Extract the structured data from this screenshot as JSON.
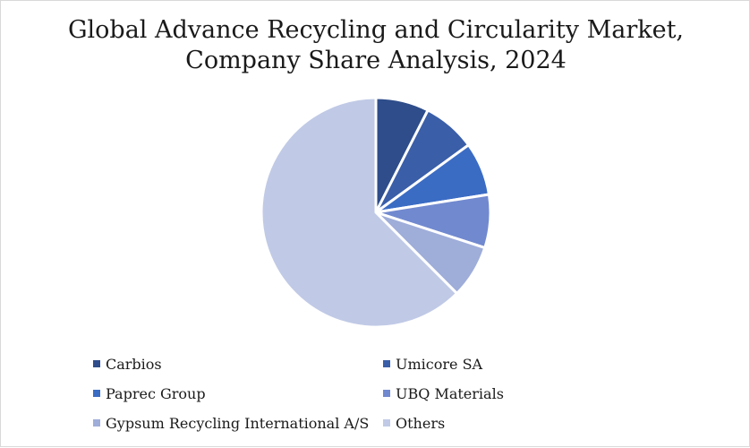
{
  "chart_data": {
    "type": "pie",
    "title_lines": [
      "Global Advance Recycling and Circularity Market,",
      "Company Share Analysis, 2024"
    ],
    "legend_position": "bottom",
    "slice_order": "clockwise-from-top",
    "slices": [
      {
        "label": "Carbios",
        "value": 7.5,
        "color": "#2e4d8a"
      },
      {
        "label": "Umicore SA",
        "value": 7.5,
        "color": "#3a5ea8"
      },
      {
        "label": "Paprec Group",
        "value": 7.5,
        "color": "#3b6cc4"
      },
      {
        "label": "UBQ Materials",
        "value": 7.5,
        "color": "#7189cf"
      },
      {
        "label": "Gypsum Recycling International A/S",
        "value": 7.5,
        "color": "#9fadd9"
      },
      {
        "label": "Others",
        "value": 62.5,
        "color": "#c0cae6"
      }
    ]
  }
}
